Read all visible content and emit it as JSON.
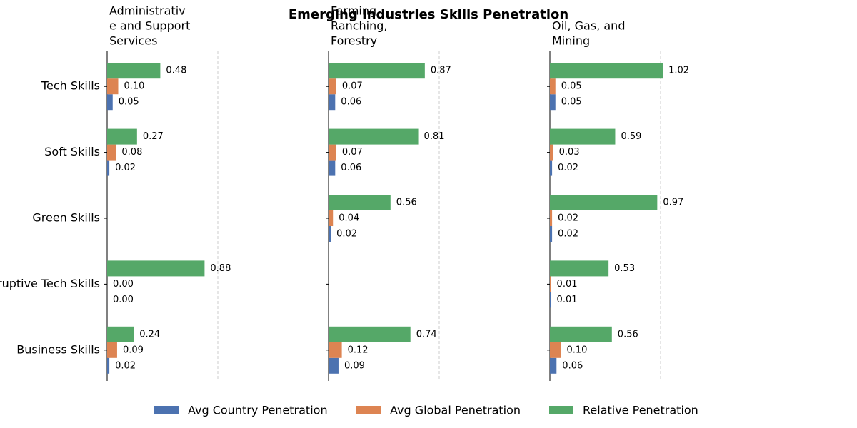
{
  "title": "Emerging Industries Skills Penetration",
  "categories": [
    "Tech Skills",
    "Soft Skills",
    "Green Skills",
    "Disruptive Tech Skills",
    "Business Skills"
  ],
  "chart_data": [
    {
      "type": "barh",
      "title": [
        "Administrativ",
        "e and Support",
        "Services"
      ],
      "xlim": [
        0,
        1.1
      ],
      "reference_line": 1,
      "series": [
        {
          "name": "Avg Country Penetration",
          "color": "#4c72b0",
          "values": [
            0.05,
            0.02,
            null,
            0,
            0.02
          ],
          "value_labels": [
            "0.05",
            "0.02",
            null,
            "0.00",
            "0.02"
          ]
        },
        {
          "name": "Avg Global Penetration",
          "color": "#dd8452",
          "values": [
            0.1,
            0.08,
            null,
            0,
            0.09
          ],
          "value_labels": [
            "0.10",
            "0.08",
            null,
            "0.00",
            "0.09"
          ]
        },
        {
          "name": "Relative Penetration",
          "color": "#55a868",
          "values": [
            0.48,
            0.27,
            null,
            0.88,
            0.24
          ],
          "value_labels": [
            "0.48",
            "0.27",
            null,
            "0.88",
            "0.24"
          ]
        }
      ]
    },
    {
      "type": "barh",
      "title": [
        "Farming,",
        "Ranching,",
        "Forestry"
      ],
      "xlim": [
        0,
        1.1
      ],
      "reference_line": 1,
      "series": [
        {
          "name": "Avg Country Penetration",
          "color": "#4c72b0",
          "values": [
            0.06,
            0.06,
            0.02,
            null,
            0.09
          ],
          "value_labels": [
            "0.06",
            "0.06",
            "0.02",
            null,
            "0.09"
          ]
        },
        {
          "name": "Avg Global Penetration",
          "color": "#dd8452",
          "values": [
            0.07,
            0.07,
            0.04,
            null,
            0.12
          ],
          "value_labels": [
            "0.07",
            "0.07",
            "0.04",
            null,
            "0.12"
          ]
        },
        {
          "name": "Relative Penetration",
          "color": "#55a868",
          "values": [
            0.87,
            0.81,
            0.56,
            null,
            0.74
          ],
          "value_labels": [
            "0.87",
            "0.81",
            "0.56",
            null,
            "0.74"
          ]
        }
      ]
    },
    {
      "type": "barh",
      "title": [
        "Oil, Gas, and",
        "Mining"
      ],
      "xlim": [
        0,
        1.1
      ],
      "reference_line": 1,
      "series": [
        {
          "name": "Avg Country Penetration",
          "color": "#4c72b0",
          "values": [
            0.05,
            0.02,
            0.02,
            0.01,
            0.06
          ],
          "value_labels": [
            "0.05",
            "0.02",
            "0.02",
            "0.01",
            "0.06"
          ]
        },
        {
          "name": "Avg Global Penetration",
          "color": "#dd8452",
          "values": [
            0.05,
            0.03,
            0.02,
            0.01,
            0.1
          ],
          "value_labels": [
            "0.05",
            "0.03",
            "0.02",
            "0.01",
            "0.10"
          ]
        },
        {
          "name": "Relative Penetration",
          "color": "#55a868",
          "values": [
            1.02,
            0.59,
            0.97,
            0.53,
            0.56
          ],
          "value_labels": [
            "1.02",
            "0.59",
            "0.97",
            "0.53",
            "0.56"
          ]
        }
      ]
    }
  ]
}
